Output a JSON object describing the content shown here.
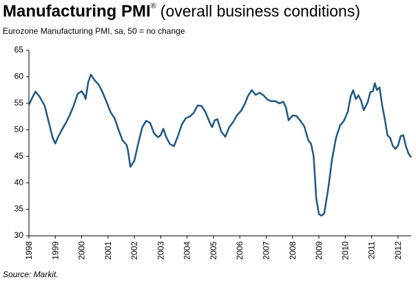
{
  "chart_data": {
    "type": "line",
    "title": "Manufacturing PMI",
    "title_mark": "®",
    "title_suffix": "(overall business conditions)",
    "subtitle": "Eurozone Manufacturing PMI, sa, 50 = no change",
    "source": "Source: Markit.",
    "x": [
      1998.0,
      1998.1,
      1998.25,
      1998.4,
      1998.6,
      1998.75,
      1998.9,
      1999.0,
      1999.1,
      1999.25,
      1999.4,
      1999.55,
      1999.7,
      1999.85,
      2000.0,
      2000.1,
      2000.15,
      2000.25,
      2000.35,
      2000.5,
      2000.65,
      2000.8,
      2000.95,
      2001.1,
      2001.25,
      2001.4,
      2001.55,
      2001.7,
      2001.75,
      2001.85,
      2002.0,
      2002.15,
      2002.3,
      2002.45,
      2002.6,
      2002.75,
      2002.9,
      2003.0,
      2003.1,
      2003.2,
      2003.35,
      2003.5,
      2003.65,
      2003.8,
      2003.95,
      2004.1,
      2004.25,
      2004.4,
      2004.55,
      2004.7,
      2004.85,
      2004.95,
      2005.05,
      2005.15,
      2005.3,
      2005.45,
      2005.6,
      2005.75,
      2005.9,
      2006.05,
      2006.2,
      2006.3,
      2006.45,
      2006.6,
      2006.75,
      2006.9,
      2007.05,
      2007.2,
      2007.35,
      2007.5,
      2007.65,
      2007.75,
      2007.85,
      2008.0,
      2008.15,
      2008.3,
      2008.45,
      2008.6,
      2008.7,
      2008.8,
      2008.9,
      2009.0,
      2009.1,
      2009.2,
      2009.35,
      2009.5,
      2009.65,
      2009.8,
      2009.95,
      2010.1,
      2010.2,
      2010.3,
      2010.4,
      2010.5,
      2010.6,
      2010.7,
      2010.85,
      2010.95,
      2011.05,
      2011.12,
      2011.2,
      2011.3,
      2011.4,
      2011.5,
      2011.6,
      2011.7,
      2011.8,
      2011.9,
      2012.0,
      2012.1,
      2012.2,
      2012.3,
      2012.4,
      2012.5
    ],
    "values": [
      54.7,
      55.8,
      57.2,
      56.3,
      54.5,
      51.5,
      48.5,
      47.4,
      48.6,
      50.0,
      51.3,
      52.8,
      54.6,
      56.8,
      57.3,
      56.5,
      55.8,
      59.0,
      60.4,
      59.3,
      58.5,
      57.0,
      55.2,
      53.3,
      52.2,
      50.0,
      48.0,
      47.2,
      46.3,
      43.0,
      44.2,
      47.5,
      50.5,
      51.7,
      51.3,
      49.3,
      48.6,
      49.0,
      50.2,
      48.7,
      47.3,
      46.9,
      48.8,
      51.0,
      52.2,
      52.5,
      53.2,
      54.6,
      54.5,
      53.3,
      51.5,
      50.5,
      51.8,
      52.0,
      49.6,
      48.7,
      50.5,
      51.5,
      52.8,
      53.6,
      55.0,
      56.3,
      57.5,
      56.6,
      57.0,
      56.5,
      55.7,
      55.4,
      55.4,
      55.0,
      55.3,
      54.2,
      51.8,
      52.7,
      52.6,
      51.7,
      50.6,
      48.0,
      47.4,
      45.0,
      37.0,
      34.1,
      33.8,
      34.2,
      38.8,
      44.5,
      48.5,
      50.8,
      51.7,
      53.5,
      56.2,
      57.5,
      55.8,
      56.5,
      55.5,
      53.7,
      55.2,
      57.1,
      57.3,
      58.8,
      57.5,
      58.0,
      54.6,
      52.0,
      49.0,
      48.5,
      47.0,
      46.4,
      47.0,
      48.8,
      49.0,
      46.9,
      45.5,
      44.8
    ],
    "color": "#1f5783",
    "xlim": [
      1998,
      2012.5
    ],
    "xticks": [
      1998,
      1999,
      2000,
      2001,
      2002,
      2003,
      2004,
      2005,
      2006,
      2007,
      2008,
      2009,
      2010,
      2011,
      2012
    ],
    "ylim": [
      30,
      65
    ],
    "yticks": [
      30,
      35,
      40,
      45,
      50,
      55,
      60,
      65
    ],
    "grid": false
  }
}
